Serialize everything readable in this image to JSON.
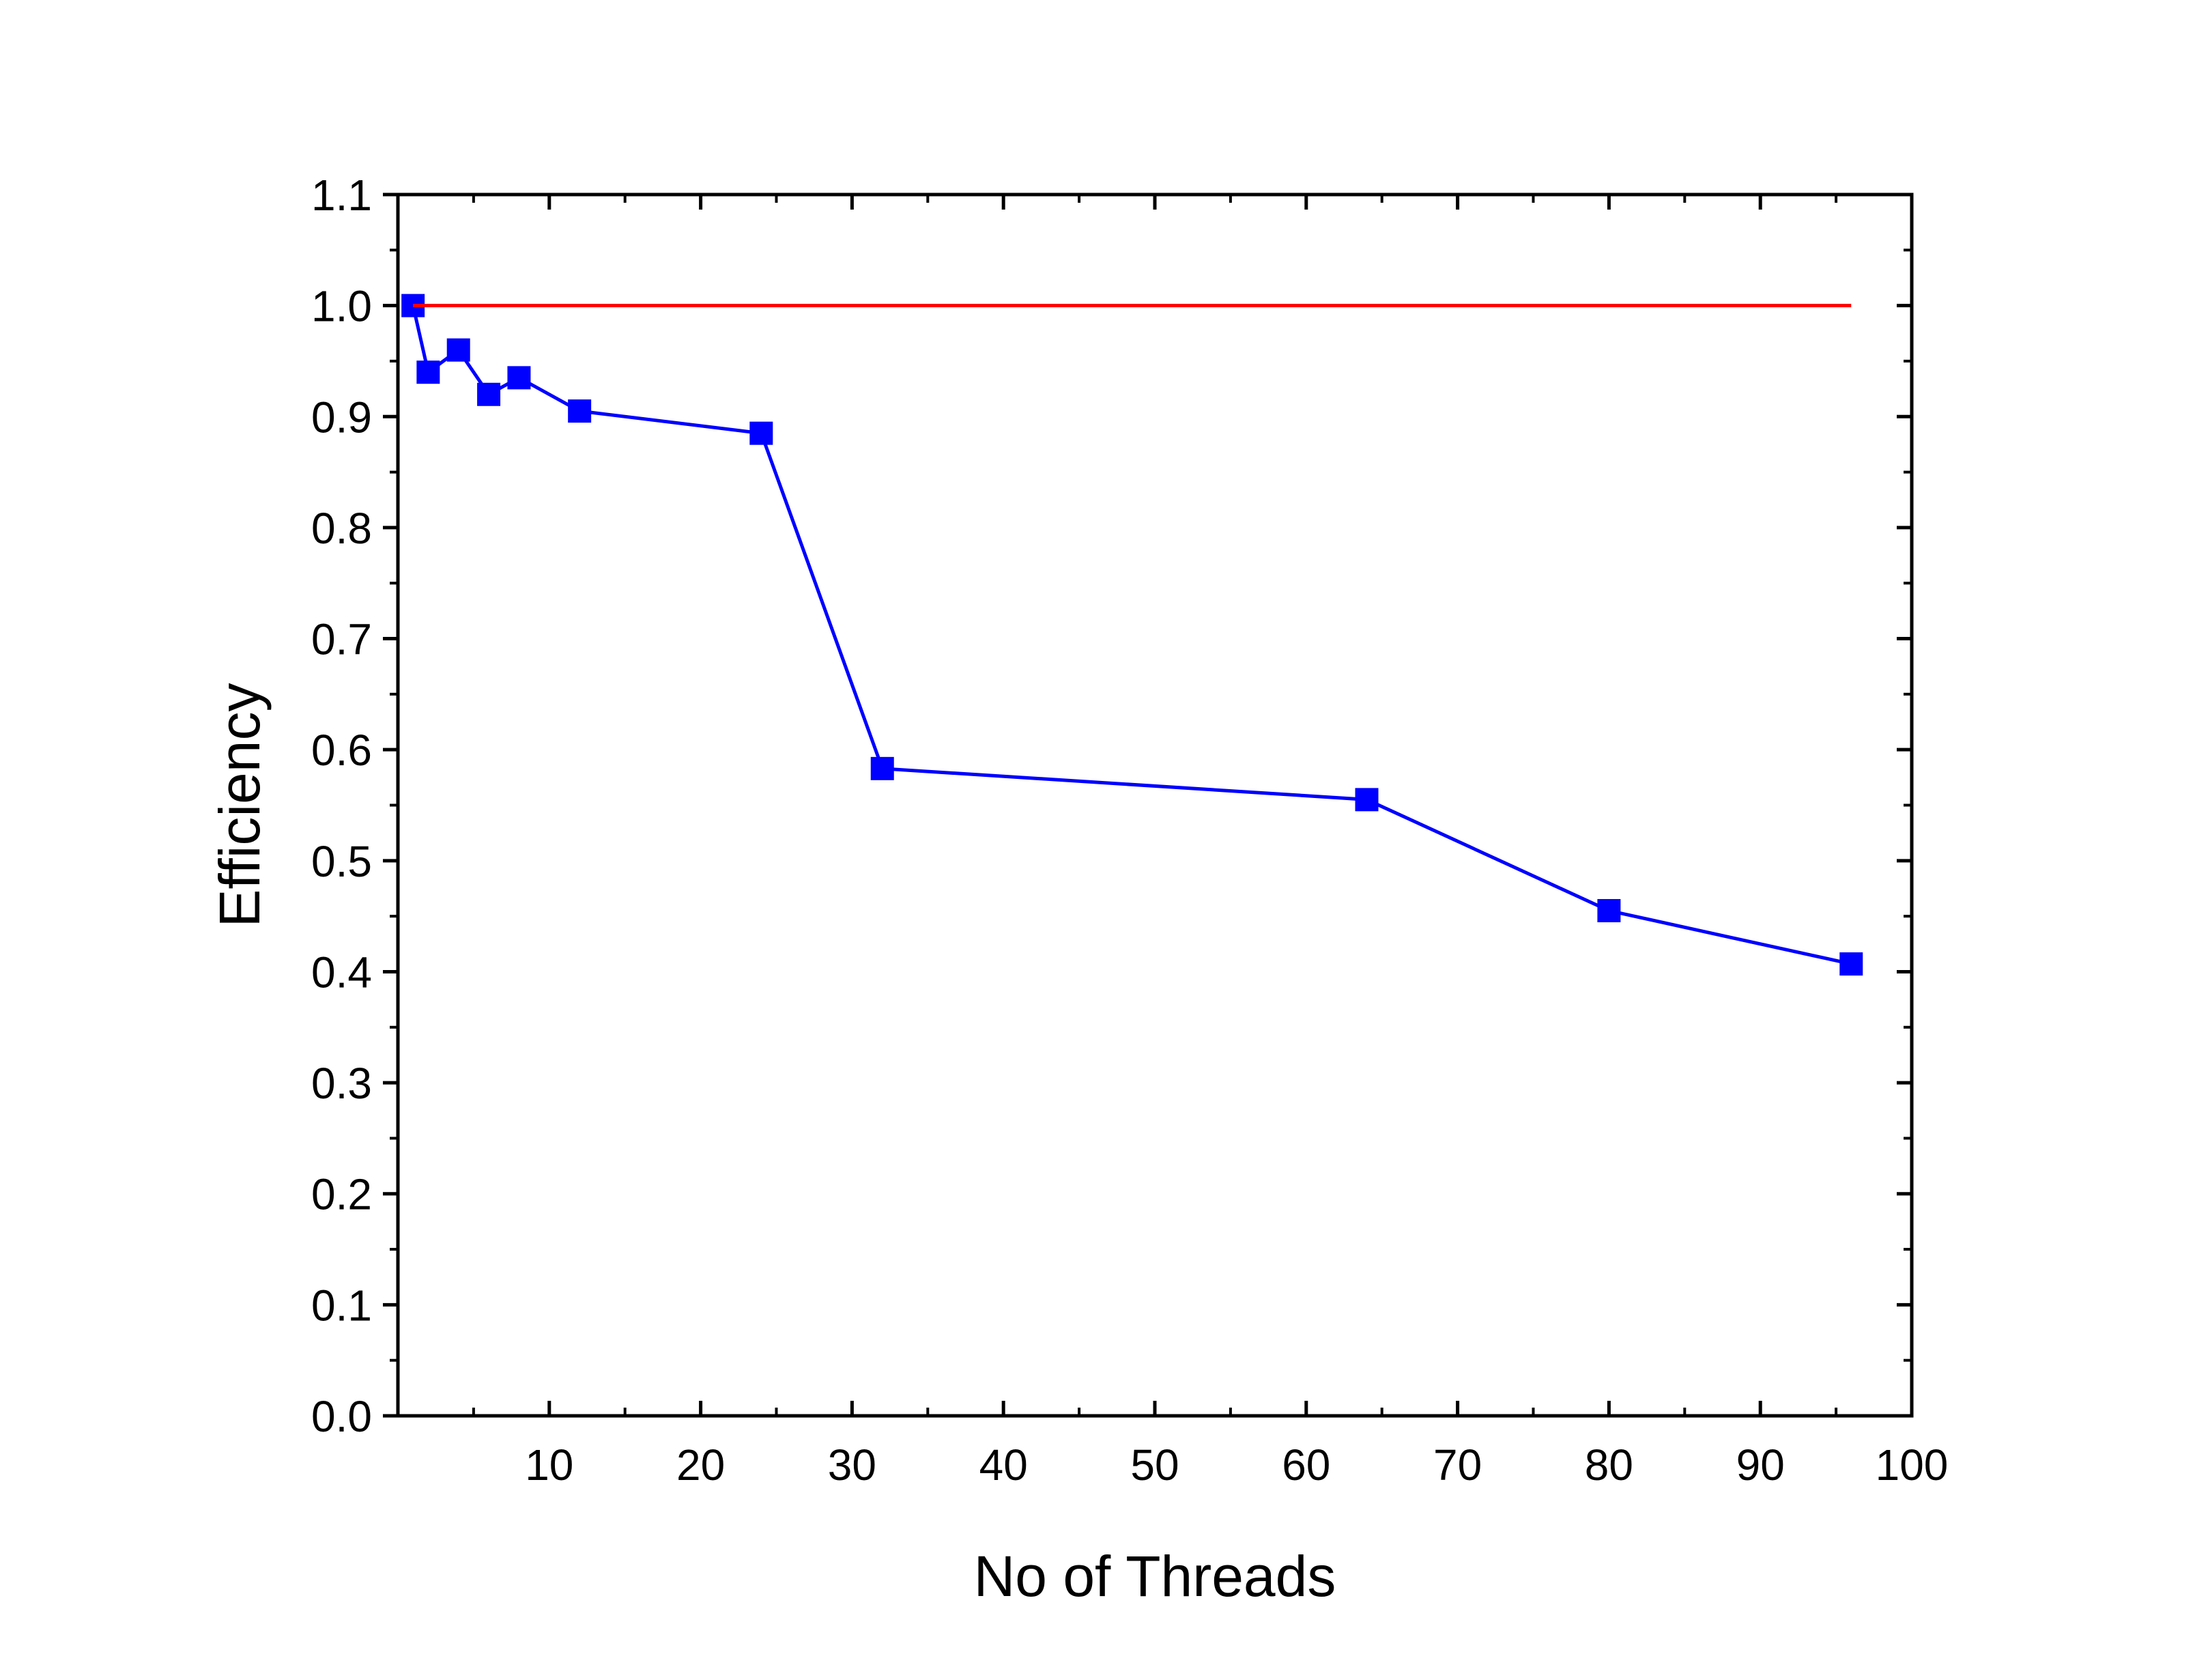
{
  "chart_data": {
    "type": "line",
    "xlabel": "No of Threads",
    "ylabel": "Efficiency",
    "xlim": [
      0,
      100
    ],
    "ylim": [
      0,
      1.1
    ],
    "x_ticks": [
      10,
      20,
      30,
      40,
      50,
      60,
      70,
      80,
      90,
      100
    ],
    "x_tick_labels": [
      "10",
      "20",
      "30",
      "40",
      "50",
      "60",
      "70",
      "80",
      "90",
      "100"
    ],
    "y_ticks": [
      0.0,
      0.1,
      0.2,
      0.3,
      0.4,
      0.5,
      0.6,
      0.7,
      0.8,
      0.9,
      1.0,
      1.1
    ],
    "y_tick_labels": [
      "0.0",
      "0.1",
      "0.2",
      "0.3",
      "0.4",
      "0.5",
      "0.6",
      "0.7",
      "0.8",
      "0.9",
      "1.0",
      "1.1"
    ],
    "grid": false,
    "legend": "none",
    "series": [
      {
        "color": "#0000ff",
        "marker": "square",
        "x": [
          1,
          2,
          4,
          6,
          8,
          12,
          24,
          32,
          64,
          80,
          96
        ],
        "y": [
          1.0,
          0.94,
          0.96,
          0.92,
          0.935,
          0.905,
          0.885,
          0.583,
          0.555,
          0.455,
          0.407
        ]
      },
      {
        "color": "#ff0000",
        "marker": "none",
        "x": [
          1,
          96
        ],
        "y": [
          1.0,
          1.0
        ]
      }
    ]
  }
}
